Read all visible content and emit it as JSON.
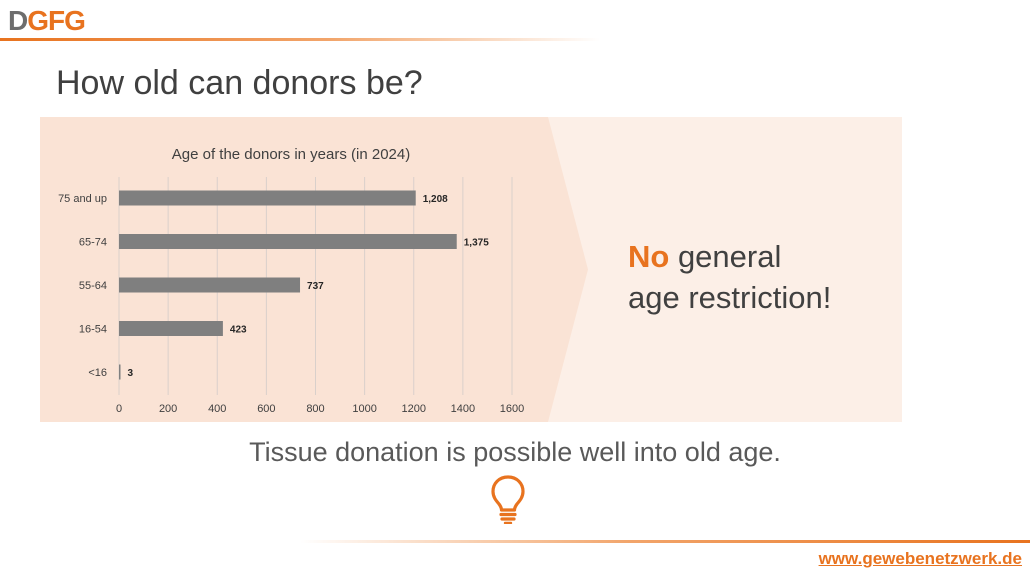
{
  "logo": {
    "part1": "D",
    "part2": "GFG"
  },
  "slide_title": "How old can donors be?",
  "message": {
    "highlight": "No",
    "line1_rest": " general",
    "line2": "age restriction!"
  },
  "subtitle": "Tissue donation is possible well into old age.",
  "website": "www.gewebenetzwerk.de",
  "icons": {
    "bulb": "lightbulb-icon"
  },
  "colors": {
    "accent": "#e8731f",
    "bar": "#7f7f7f",
    "panel": "#fae3d5"
  },
  "chart_data": {
    "type": "bar",
    "orientation": "horizontal",
    "title": "Age of the donors in years (in 2024)",
    "categories": [
      "75 and up",
      "65-74",
      "55-64",
      "16-54",
      "<16"
    ],
    "values": [
      1208,
      1375,
      737,
      423,
      3
    ],
    "value_labels": [
      "1,208",
      "1,375",
      "737",
      "423",
      "3"
    ],
    "xlim": [
      0,
      1600
    ],
    "xticks": [
      0,
      200,
      400,
      600,
      800,
      1000,
      1200,
      1400,
      1600
    ],
    "grid": true,
    "legend": "none"
  }
}
